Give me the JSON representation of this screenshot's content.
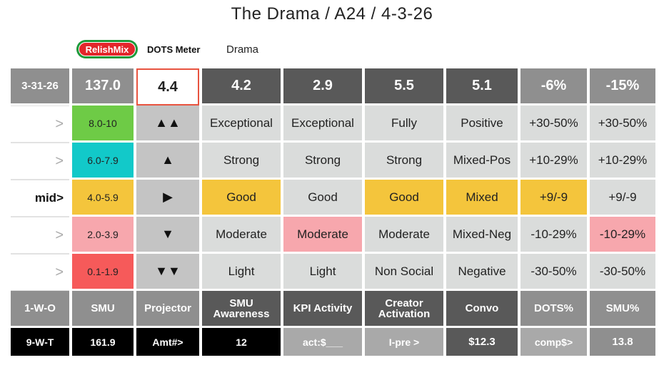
{
  "title": "The Drama / A24 / 4-3-26",
  "logo_text": "RelishMix",
  "meter_label": "DOTS Meter",
  "genre_label": "Drama",
  "header": [
    "3-31-26",
    "137.0",
    "4.4",
    "4.2",
    "2.9",
    "5.5",
    "5.1",
    "-6%",
    "-15%"
  ],
  "rows": [
    {
      "label": ">",
      "range": "8.0-10",
      "arrow": "▲▲",
      "values": [
        "Exceptional",
        "Exceptional",
        "Fully",
        "Positive",
        "+30-50%",
        "+30-50%"
      ]
    },
    {
      "label": ">",
      "range": "6.0-7.9",
      "arrow": "▲",
      "values": [
        "Strong",
        "Strong",
        "Strong",
        "Mixed-Pos",
        "+10-29%",
        "+10-29%"
      ]
    },
    {
      "label": "mid>",
      "range": "4.0-5.9",
      "arrow": "▶",
      "values": [
        "Good",
        "Good",
        "Good",
        "Mixed",
        "+9/-9",
        "+9/-9"
      ]
    },
    {
      "label": ">",
      "range": "2.0-3.9",
      "arrow": "▼",
      "values": [
        "Moderate",
        "Moderate",
        "Moderate",
        "Mixed-Neg",
        "-10-29%",
        "-10-29%"
      ]
    },
    {
      "label": ">",
      "range": "0.1-1.9",
      "arrow": "▼▼",
      "values": [
        "Light",
        "Light",
        "Non Social",
        "Negative",
        "-30-50%",
        "-30-50%"
      ]
    }
  ],
  "footer": [
    "1-W-O",
    "SMU",
    "Projector",
    "SMU Awareness",
    "KPI Activity",
    "Creator Activation",
    "Convo",
    "DOTS%",
    "SMU%"
  ],
  "bottom": [
    "9-W-T",
    "161.9",
    "Amt#>",
    "12",
    "act:$___",
    "I-pre >",
    "$12.3",
    "comp$>",
    "13.8"
  ]
}
